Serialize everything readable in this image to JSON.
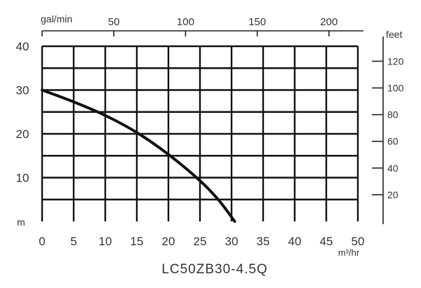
{
  "chart_data": {
    "type": "line",
    "title": "LC50ZB30-4.5Q",
    "x": {
      "unit_label": "m³/hr",
      "range": [
        0,
        50
      ],
      "ticks": [
        "0",
        "5",
        "10",
        "15",
        "20",
        "25",
        "30",
        "35",
        "40",
        "45",
        "50"
      ]
    },
    "x_top": {
      "unit_label": "gal/min",
      "ticks": [
        {
          "value": 50,
          "label": "50"
        },
        {
          "value": 100,
          "label": "100"
        },
        {
          "value": 150,
          "label": "150"
        },
        {
          "value": 200,
          "label": "200"
        }
      ]
    },
    "y": {
      "unit_label": "m",
      "range": [
        0,
        40
      ],
      "ticks": [
        {
          "value": 10,
          "label": "10"
        },
        {
          "value": 20,
          "label": "20"
        },
        {
          "value": 30,
          "label": "30"
        },
        {
          "value": 40,
          "label": "40"
        }
      ]
    },
    "y_right": {
      "unit_label": "feet",
      "ticks": [
        {
          "value": 20,
          "label": "20"
        },
        {
          "value": 40,
          "label": "40"
        },
        {
          "value": 60,
          "label": "60"
        },
        {
          "value": 80,
          "label": "80"
        },
        {
          "value": 100,
          "label": "100"
        },
        {
          "value": 120,
          "label": "120"
        }
      ]
    },
    "grid": true,
    "series": [
      {
        "x": [
          0,
          5,
          10,
          15,
          20,
          25,
          28,
          30.5
        ],
        "y": [
          30,
          27.3,
          24.2,
          20.3,
          15.3,
          9.3,
          4.8,
          0
        ],
        "color": "#111111"
      }
    ]
  }
}
